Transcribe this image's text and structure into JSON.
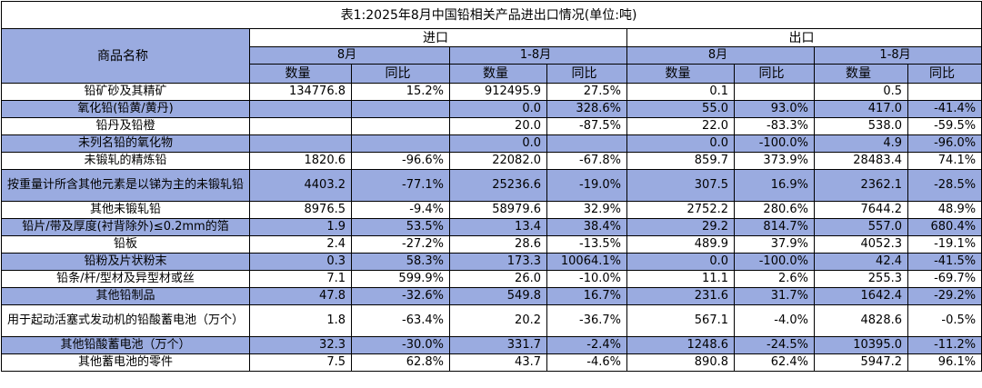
{
  "title": "表1:2025年8月中国铅相关产品进出口情况(单位:吨)",
  "header": {
    "product_name": "商品名称",
    "import": "进口",
    "export": "出口",
    "month": "8月",
    "ytd": "1-8月",
    "quantity": "数量",
    "yoy": "同比"
  },
  "rows": [
    {
      "name": "铅矿砂及其精矿",
      "values": [
        "134776.8",
        "15.2%",
        "912495.9",
        "27.5%",
        "0.1",
        "",
        "0.5",
        ""
      ]
    },
    {
      "name": "氧化铅(铅黄/黄丹)",
      "values": [
        "",
        "",
        "0.0",
        "328.6%",
        "55.0",
        "93.0%",
        "417.0",
        "-41.4%"
      ]
    },
    {
      "name": "铅丹及铅橙",
      "values": [
        "",
        "",
        "20.0",
        "-87.5%",
        "22.0",
        "-83.3%",
        "538.0",
        "-59.5%"
      ]
    },
    {
      "name": "未列名铅的氧化物",
      "values": [
        "",
        "",
        "0.0",
        "",
        "0.0",
        "-100.0%",
        "4.9",
        "-96.0%"
      ]
    },
    {
      "name": "未锻轧的精炼铅",
      "values": [
        "1820.6",
        "-96.6%",
        "22082.0",
        "-67.8%",
        "859.7",
        "373.9%",
        "28483.4",
        "74.1%"
      ]
    },
    {
      "name": "按重量计所含其他元素是以锑为主的未锻轧铅",
      "values": [
        "4403.2",
        "-77.1%",
        "25236.6",
        "-19.0%",
        "307.5",
        "16.9%",
        "2362.1",
        "-28.5%"
      ]
    },
    {
      "name": "其他未锻轧铅",
      "values": [
        "8976.5",
        "-9.4%",
        "58979.6",
        "32.9%",
        "2752.2",
        "280.6%",
        "7644.2",
        "48.9%"
      ]
    },
    {
      "name": "铅片/带及厚度(衬背除外)≤0.2mm的箔",
      "values": [
        "1.9",
        "53.5%",
        "13.4",
        "38.4%",
        "29.2",
        "814.7%",
        "557.0",
        "680.4%"
      ]
    },
    {
      "name": "铅板",
      "values": [
        "2.4",
        "-27.2%",
        "28.6",
        "-13.5%",
        "489.9",
        "37.9%",
        "4052.3",
        "-19.1%"
      ]
    },
    {
      "name": "铅粉及片状粉末",
      "values": [
        "0.3",
        "58.3%",
        "173.3",
        "10064.1%",
        "0.0",
        "-100.0%",
        "42.4",
        "-41.5%"
      ]
    },
    {
      "name": "铅条/杆/型材及异型材或丝",
      "values": [
        "7.1",
        "599.9%",
        "26.0",
        "-10.0%",
        "11.1",
        "2.6%",
        "255.3",
        "-69.7%"
      ]
    },
    {
      "name": "其他铅制品",
      "values": [
        "47.8",
        "-32.6%",
        "549.8",
        "16.7%",
        "231.6",
        "31.7%",
        "1642.4",
        "-29.2%"
      ]
    },
    {
      "name": "用于起动活塞式发动机的铅酸蓄电池（万个）",
      "values": [
        "1.8",
        "-63.4%",
        "20.2",
        "-36.7%",
        "567.1",
        "-4.0%",
        "4828.6",
        "-0.5%"
      ]
    },
    {
      "name": "其他铅酸蓄电池（万个）",
      "values": [
        "32.3",
        "-30.0%",
        "331.7",
        "-2.4%",
        "1248.6",
        "-24.5%",
        "10395.0",
        "-11.2%"
      ]
    },
    {
      "name": "其他蓄电池的零件",
      "values": [
        "7.5",
        "62.8%",
        "43.7",
        "-4.6%",
        "890.8",
        "62.4%",
        "5947.2",
        "96.1%"
      ]
    }
  ]
}
